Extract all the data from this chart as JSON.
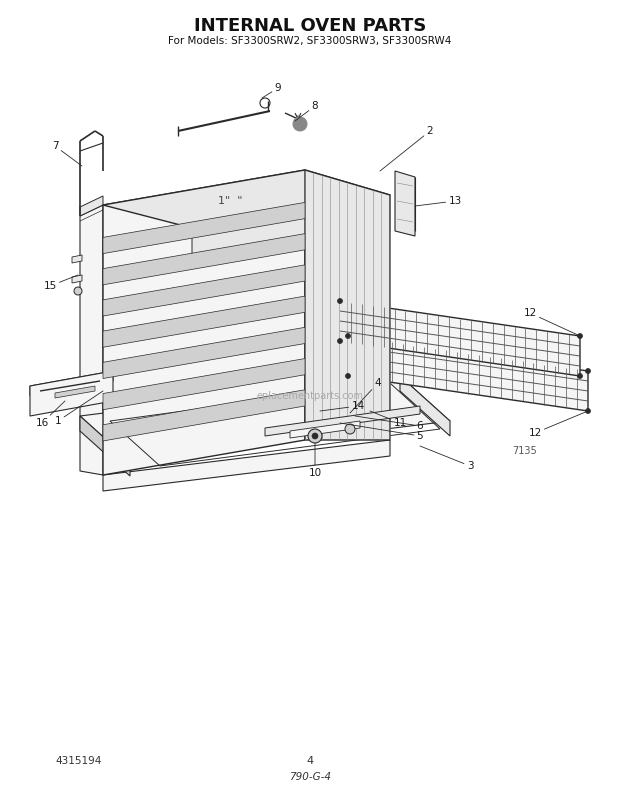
{
  "title": "INTERNAL OVEN PARTS",
  "subtitle": "For Models: SF3300SRW2, SF3300SRW3, SF3300SRW4",
  "part_number_bottom_left": "4315194",
  "page_number": "4",
  "diagram_code": "790-G-4",
  "figure_number": "7135",
  "bg_color": "#ffffff",
  "line_color": "#2a2a2a",
  "fill_light": "#f5f5f5",
  "fill_mid": "#e8e8e8",
  "fill_dark": "#d0d0d0",
  "fill_darkest": "#b8b8b8"
}
